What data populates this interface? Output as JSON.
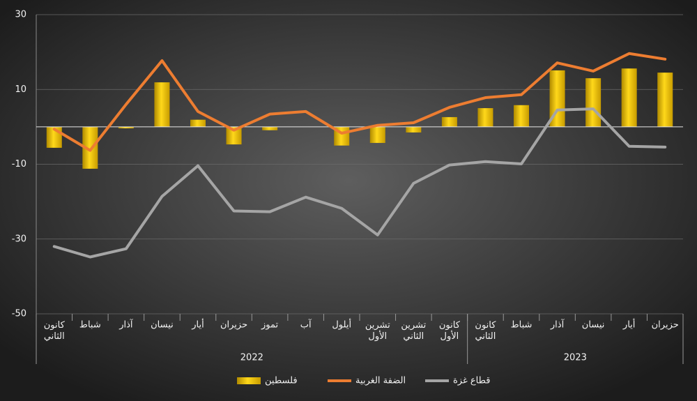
{
  "chart_data": {
    "type": "bar-line",
    "category_groups": [
      {
        "label": "2022",
        "categories": [
          "كانون الثاني",
          "شباط",
          "آذار",
          "نيسان",
          "أيار",
          "حزيران",
          "تموز",
          "آب",
          "أيلول",
          "تشرين الأول",
          "تشرين الثاني",
          "كانون الأول"
        ]
      },
      {
        "label": "2023",
        "categories": [
          "كانون الثاني",
          "شباط",
          "آذار",
          "نيسان",
          "أيار",
          "حزيران"
        ]
      }
    ],
    "series": [
      {
        "name": "فلسطين",
        "type": "bar",
        "color": "#f2c200",
        "values": [
          -5.6,
          -11.2,
          -0.4,
          11.9,
          1.9,
          -4.7,
          -0.9,
          0,
          -5,
          -4.3,
          -1.5,
          2.6,
          5,
          5.8,
          15.1,
          13,
          15.6,
          14.5
        ]
      },
      {
        "name": "الضفة الغربية",
        "type": "line",
        "color": "#ed7d31",
        "values": [
          -0.6,
          -6.3,
          6,
          17.7,
          4.1,
          -0.9,
          3.4,
          4.1,
          -1.7,
          0.4,
          1.1,
          5.2,
          7.8,
          8.6,
          17.1,
          14.9,
          19.6,
          18.1
        ]
      },
      {
        "name": "قطاع غزة",
        "type": "line",
        "color": "#a5a5a5",
        "values": [
          -32,
          -34.8,
          -32.6,
          -18.6,
          -10.4,
          -22.5,
          -22.7,
          -18.8,
          -21.8,
          -28.9,
          -15.1,
          -10.2,
          -9.3,
          -9.9,
          4.5,
          4.8,
          -5.2,
          -5.4
        ]
      }
    ],
    "ylim": [
      -50,
      30
    ],
    "yticks": [
      -50,
      -30,
      -10,
      10,
      30
    ],
    "grid": true,
    "legend": "bottom"
  }
}
